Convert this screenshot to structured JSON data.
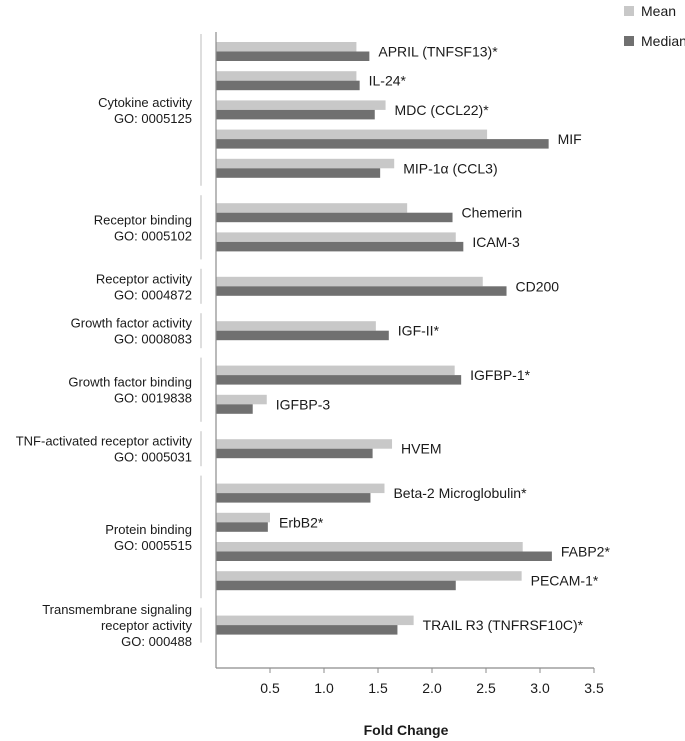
{
  "chart_data": {
    "type": "bar",
    "orientation": "horizontal",
    "xlabel": "Fold Change",
    "xlim": [
      0,
      3.5
    ],
    "xticks": [
      "0.5",
      "1.0",
      "1.5",
      "2.0",
      "2.5",
      "3.0",
      "3.5"
    ],
    "grid": false,
    "legend_position": "top-right",
    "series": [
      {
        "name": "Mean",
        "color": "#c8c8c8"
      },
      {
        "name": "Median",
        "color": "#707070"
      }
    ],
    "groups": [
      {
        "label": [
          "Cytokine activity",
          "GO: 0005125"
        ],
        "items": [
          {
            "name": "APRIL (TNFSF13)*",
            "mean": 1.3,
            "median": 1.42
          },
          {
            "name": "IL-24*",
            "mean": 1.3,
            "median": 1.33
          },
          {
            "name": "MDC (CCL22)*",
            "mean": 1.57,
            "median": 1.47
          },
          {
            "name": "MIF",
            "mean": 2.51,
            "median": 3.08
          },
          {
            "name": "MIP-1α (CCL3)",
            "mean": 1.65,
            "median": 1.52
          }
        ]
      },
      {
        "label": [
          "Receptor binding",
          "GO: 0005102"
        ],
        "items": [
          {
            "name": "Chemerin",
            "mean": 1.77,
            "median": 2.19
          },
          {
            "name": "ICAM-3",
            "mean": 2.22,
            "median": 2.29
          }
        ]
      },
      {
        "label": [
          "Receptor activity",
          "GO: 0004872"
        ],
        "items": [
          {
            "name": "CD200",
            "mean": 2.47,
            "median": 2.69
          }
        ]
      },
      {
        "label": [
          "Growth factor activity",
          "GO: 0008083"
        ],
        "items": [
          {
            "name": "IGF-II*",
            "mean": 1.48,
            "median": 1.6
          }
        ]
      },
      {
        "label": [
          "Growth factor binding",
          "GO: 0019838"
        ],
        "items": [
          {
            "name": "IGFBP-1*",
            "mean": 2.21,
            "median": 2.27
          },
          {
            "name": "IGFBP-3",
            "mean": 0.47,
            "median": 0.34
          }
        ]
      },
      {
        "label": [
          "TNF-activated receptor activity",
          "GO: 0005031"
        ],
        "items": [
          {
            "name": "HVEM",
            "mean": 1.63,
            "median": 1.45
          }
        ]
      },
      {
        "label": [
          "Protein binding",
          "GO: 0005515"
        ],
        "items": [
          {
            "name": "Beta-2 Microglobulin*",
            "mean": 1.56,
            "median": 1.43
          },
          {
            "name": "ErbB2*",
            "mean": 0.5,
            "median": 0.48
          },
          {
            "name": "FABP2*",
            "mean": 2.84,
            "median": 3.11
          },
          {
            "name": "PECAM-1*",
            "mean": 2.83,
            "median": 2.22
          }
        ]
      },
      {
        "label": [
          "Transmembrane signaling",
          "receptor activity",
          "GO: 000488"
        ],
        "items": [
          {
            "name": "TRAIL R3 (TNFRSF10C)*",
            "mean": 1.83,
            "median": 1.68
          }
        ]
      }
    ]
  }
}
